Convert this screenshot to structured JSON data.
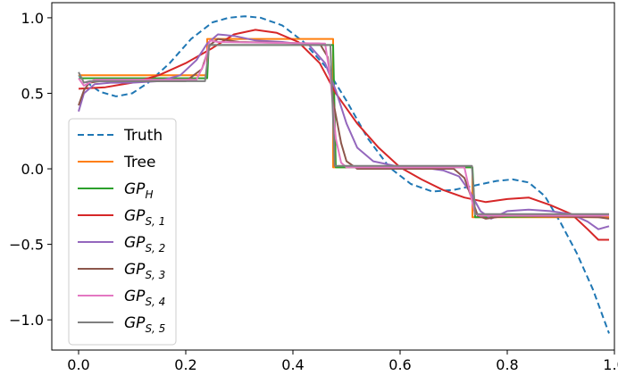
{
  "chart_data": {
    "type": "line",
    "title": "",
    "xlabel": "",
    "ylabel": "",
    "xlim": [
      -0.05,
      1.0
    ],
    "ylim": [
      -1.2,
      1.1
    ],
    "xticks": [
      0.0,
      0.2,
      0.4,
      0.6,
      0.8,
      1.0
    ],
    "xtick_labels": [
      "0.0",
      "0.2",
      "0.4",
      "0.6",
      "0.8",
      "1.0"
    ],
    "yticks": [
      -1.0,
      -0.5,
      0.0,
      0.5,
      1.0
    ],
    "ytick_labels": [
      "−1.0",
      "−0.5",
      "0.0",
      "0.5",
      "1.0"
    ],
    "grid": false,
    "legend_position": "center-left",
    "series": [
      {
        "name": "Truth",
        "legend_main": "Truth",
        "legend_sub": "",
        "color": "#1f77b4",
        "dashed": true,
        "x": [
          0.0,
          0.02,
          0.04,
          0.07,
          0.1,
          0.13,
          0.17,
          0.21,
          0.25,
          0.28,
          0.31,
          0.34,
          0.38,
          0.42,
          0.46,
          0.5,
          0.54,
          0.58,
          0.62,
          0.66,
          0.7,
          0.74,
          0.78,
          0.81,
          0.84,
          0.87,
          0.9,
          0.93,
          0.96,
          0.99
        ],
        "y": [
          0.62,
          0.56,
          0.51,
          0.48,
          0.5,
          0.57,
          0.7,
          0.86,
          0.97,
          1.0,
          1.01,
          1.0,
          0.95,
          0.84,
          0.68,
          0.45,
          0.2,
          0.01,
          -0.1,
          -0.15,
          -0.14,
          -0.11,
          -0.08,
          -0.07,
          -0.09,
          -0.18,
          -0.36,
          -0.56,
          -0.8,
          -1.09
        ]
      },
      {
        "name": "Tree",
        "legend_main": "Tree",
        "legend_sub": "",
        "color": "#ff7f0e",
        "dashed": false,
        "x": [
          0.0,
          0.24,
          0.24,
          0.475,
          0.475,
          0.735,
          0.735,
          0.99
        ],
        "y": [
          0.62,
          0.62,
          0.86,
          0.86,
          0.01,
          0.01,
          -0.32,
          -0.32
        ]
      },
      {
        "name": "GP_H",
        "legend_main": "GP",
        "legend_sub": "H",
        "color": "#2ca02c",
        "dashed": false,
        "x": [
          0.0,
          0.24,
          0.243,
          0.475,
          0.48,
          0.735,
          0.74,
          0.99
        ],
        "y": [
          0.6,
          0.6,
          0.82,
          0.82,
          0.01,
          0.01,
          -0.32,
          -0.31
        ]
      },
      {
        "name": "GP_S,1",
        "legend_main": "GP",
        "legend_sub": "S, 1",
        "color": "#d62728",
        "dashed": false,
        "x": [
          0.0,
          0.05,
          0.1,
          0.15,
          0.2,
          0.25,
          0.29,
          0.33,
          0.37,
          0.41,
          0.45,
          0.48,
          0.52,
          0.56,
          0.6,
          0.64,
          0.68,
          0.72,
          0.76,
          0.8,
          0.84,
          0.88,
          0.92,
          0.95,
          0.97,
          0.99
        ],
        "y": [
          0.53,
          0.54,
          0.57,
          0.62,
          0.7,
          0.8,
          0.89,
          0.92,
          0.9,
          0.84,
          0.7,
          0.5,
          0.3,
          0.14,
          0.01,
          -0.07,
          -0.14,
          -0.19,
          -0.22,
          -0.2,
          -0.19,
          -0.24,
          -0.3,
          -0.4,
          -0.47,
          -0.47
        ]
      },
      {
        "name": "GP_S,2",
        "legend_main": "GP",
        "legend_sub": "S, 2",
        "color": "#9467bd",
        "dashed": false,
        "x": [
          0.0,
          0.01,
          0.03,
          0.06,
          0.1,
          0.15,
          0.19,
          0.22,
          0.24,
          0.26,
          0.29,
          0.33,
          0.38,
          0.43,
          0.46,
          0.48,
          0.5,
          0.52,
          0.55,
          0.59,
          0.64,
          0.68,
          0.71,
          0.73,
          0.75,
          0.77,
          0.8,
          0.84,
          0.88,
          0.92,
          0.95,
          0.97,
          0.99
        ],
        "y": [
          0.38,
          0.5,
          0.56,
          0.57,
          0.57,
          0.58,
          0.62,
          0.72,
          0.83,
          0.89,
          0.88,
          0.85,
          0.84,
          0.82,
          0.7,
          0.52,
          0.3,
          0.14,
          0.05,
          0.02,
          0.01,
          -0.01,
          -0.05,
          -0.15,
          -0.28,
          -0.33,
          -0.28,
          -0.27,
          -0.28,
          -0.3,
          -0.35,
          -0.4,
          -0.38
        ]
      },
      {
        "name": "GP_S,3",
        "legend_main": "GP",
        "legend_sub": "S, 3",
        "color": "#8c564b",
        "dashed": false,
        "x": [
          0.0,
          0.01,
          0.02,
          0.04,
          0.08,
          0.2,
          0.23,
          0.245,
          0.26,
          0.3,
          0.45,
          0.465,
          0.475,
          0.49,
          0.5,
          0.52,
          0.55,
          0.7,
          0.72,
          0.735,
          0.745,
          0.76,
          0.8,
          0.97,
          0.99
        ],
        "y": [
          0.42,
          0.52,
          0.57,
          0.58,
          0.58,
          0.58,
          0.66,
          0.82,
          0.86,
          0.84,
          0.83,
          0.74,
          0.45,
          0.17,
          0.05,
          0.0,
          0.0,
          0.0,
          -0.06,
          -0.21,
          -0.31,
          -0.33,
          -0.31,
          -0.32,
          -0.33
        ]
      },
      {
        "name": "GP_S,4",
        "legend_main": "GP",
        "legend_sub": "S, 4",
        "color": "#e377c2",
        "dashed": false,
        "x": [
          0.0,
          0.01,
          0.03,
          0.22,
          0.235,
          0.245,
          0.26,
          0.46,
          0.47,
          0.48,
          0.49,
          0.5,
          0.72,
          0.73,
          0.74,
          0.75,
          0.99
        ],
        "y": [
          0.6,
          0.55,
          0.59,
          0.59,
          0.7,
          0.85,
          0.84,
          0.83,
          0.6,
          0.2,
          0.04,
          0.01,
          0.01,
          -0.15,
          -0.3,
          -0.31,
          -0.31
        ]
      },
      {
        "name": "GP_S,5",
        "legend_main": "GP",
        "legend_sub": "S, 5",
        "color": "#7f7f7f",
        "dashed": false,
        "x": [
          0.0,
          0.01,
          0.02,
          0.236,
          0.244,
          0.47,
          0.478,
          0.734,
          0.74,
          0.99
        ],
        "y": [
          0.64,
          0.57,
          0.58,
          0.58,
          0.82,
          0.82,
          0.02,
          0.02,
          -0.3,
          -0.3
        ]
      }
    ]
  }
}
